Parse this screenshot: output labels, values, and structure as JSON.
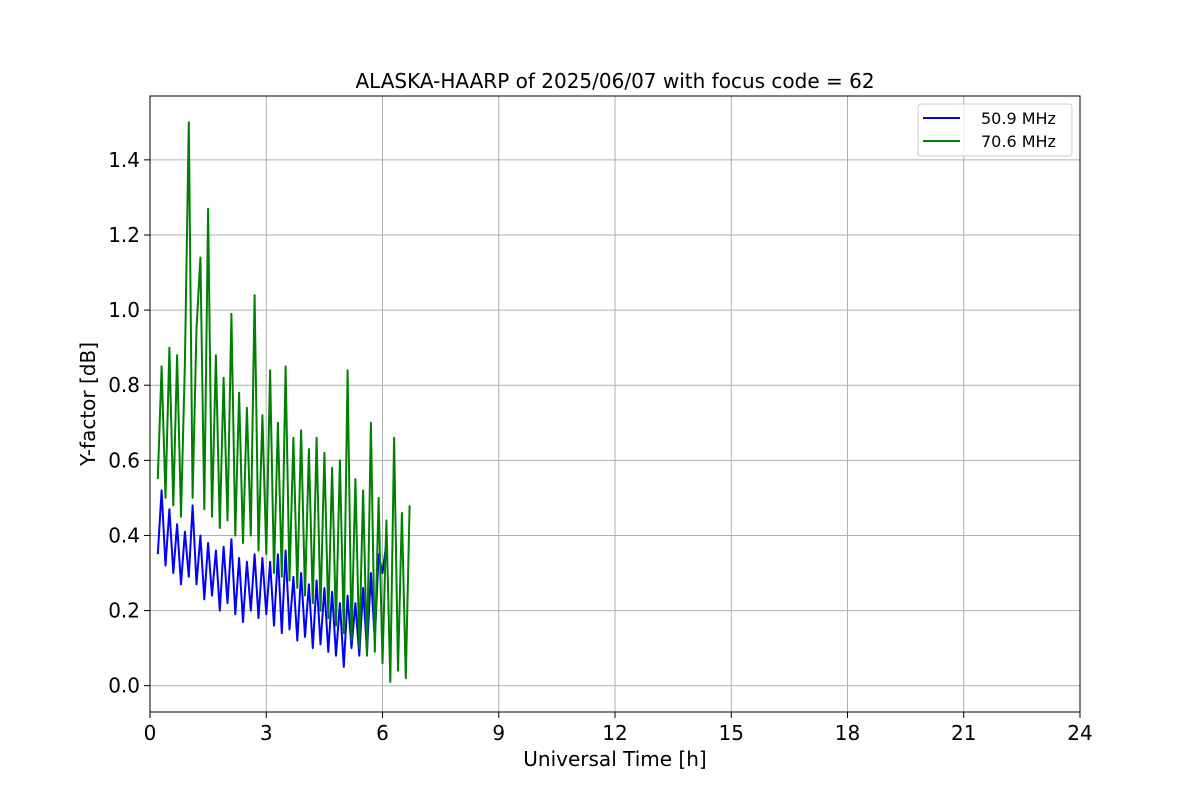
{
  "chart_data": {
    "type": "line",
    "title": "ALASKA-HAARP of 2025/06/07 with focus code = 62",
    "xlabel": "Universal Time [h]",
    "ylabel": "Y-factor [dB]",
    "xlim": [
      0,
      24
    ],
    "ylim": [
      -0.07,
      1.57
    ],
    "xticks": [
      0,
      3,
      6,
      9,
      12,
      15,
      18,
      21,
      24
    ],
    "yticks": [
      0.0,
      0.2,
      0.4,
      0.6,
      0.8,
      1.0,
      1.2,
      1.4
    ],
    "ytick_labels": [
      "0.0",
      "0.2",
      "0.4",
      "0.6",
      "0.8",
      "1.0",
      "1.2",
      "1.4"
    ],
    "xtick_labels": [
      "0",
      "3",
      "6",
      "9",
      "12",
      "15",
      "18",
      "21",
      "24"
    ],
    "grid": true,
    "legend_position": "top-right",
    "series": [
      {
        "name": "50.9 MHz",
        "color": "#0000ff",
        "x": [
          0.2,
          0.3,
          0.4,
          0.5,
          0.6,
          0.7,
          0.8,
          0.9,
          1.0,
          1.1,
          1.2,
          1.3,
          1.4,
          1.5,
          1.6,
          1.7,
          1.8,
          1.9,
          2.0,
          2.1,
          2.2,
          2.3,
          2.4,
          2.5,
          2.6,
          2.7,
          2.8,
          2.9,
          3.0,
          3.1,
          3.2,
          3.3,
          3.4,
          3.5,
          3.6,
          3.7,
          3.8,
          3.9,
          4.0,
          4.1,
          4.2,
          4.3,
          4.4,
          4.5,
          4.6,
          4.7,
          4.8,
          4.9,
          5.0,
          5.1,
          5.2,
          5.3,
          5.4,
          5.5,
          5.6,
          5.7,
          5.8,
          5.9,
          6.0,
          6.1
        ],
        "y": [
          0.35,
          0.52,
          0.32,
          0.47,
          0.3,
          0.43,
          0.27,
          0.41,
          0.29,
          0.48,
          0.27,
          0.4,
          0.23,
          0.38,
          0.24,
          0.36,
          0.2,
          0.37,
          0.22,
          0.39,
          0.19,
          0.34,
          0.17,
          0.33,
          0.2,
          0.35,
          0.18,
          0.34,
          0.19,
          0.33,
          0.16,
          0.35,
          0.14,
          0.36,
          0.15,
          0.29,
          0.12,
          0.3,
          0.13,
          0.27,
          0.1,
          0.28,
          0.11,
          0.26,
          0.09,
          0.25,
          0.08,
          0.22,
          0.05,
          0.24,
          0.1,
          0.22,
          0.08,
          0.26,
          0.09,
          0.3,
          0.12,
          0.35,
          0.3,
          0.38
        ]
      },
      {
        "name": "70.6 MHz",
        "color": "#008000",
        "x": [
          0.2,
          0.3,
          0.4,
          0.5,
          0.6,
          0.7,
          0.8,
          0.9,
          1.0,
          1.1,
          1.2,
          1.3,
          1.4,
          1.5,
          1.6,
          1.7,
          1.8,
          1.9,
          2.0,
          2.1,
          2.2,
          2.3,
          2.4,
          2.5,
          2.6,
          2.7,
          2.8,
          2.9,
          3.0,
          3.1,
          3.2,
          3.3,
          3.4,
          3.5,
          3.6,
          3.7,
          3.8,
          3.9,
          4.0,
          4.1,
          4.2,
          4.3,
          4.4,
          4.5,
          4.6,
          4.7,
          4.8,
          4.9,
          5.0,
          5.1,
          5.2,
          5.3,
          5.4,
          5.5,
          5.6,
          5.7,
          5.8,
          5.9,
          6.0,
          6.1,
          6.2,
          6.3,
          6.4,
          6.5,
          6.6,
          6.7
        ],
        "y": [
          0.55,
          0.85,
          0.5,
          0.9,
          0.48,
          0.88,
          0.45,
          0.86,
          1.5,
          0.5,
          0.95,
          1.14,
          0.47,
          1.27,
          0.45,
          0.88,
          0.42,
          0.82,
          0.44,
          0.99,
          0.4,
          0.78,
          0.38,
          0.74,
          0.4,
          1.04,
          0.36,
          0.72,
          0.35,
          0.84,
          0.3,
          0.7,
          0.29,
          0.85,
          0.28,
          0.66,
          0.26,
          0.68,
          0.24,
          0.63,
          0.22,
          0.66,
          0.2,
          0.62,
          0.18,
          0.58,
          0.16,
          0.6,
          0.14,
          0.84,
          0.12,
          0.55,
          0.1,
          0.52,
          0.08,
          0.7,
          0.09,
          0.5,
          0.06,
          0.44,
          0.01,
          0.66,
          0.04,
          0.46,
          0.02,
          0.48
        ]
      }
    ]
  }
}
